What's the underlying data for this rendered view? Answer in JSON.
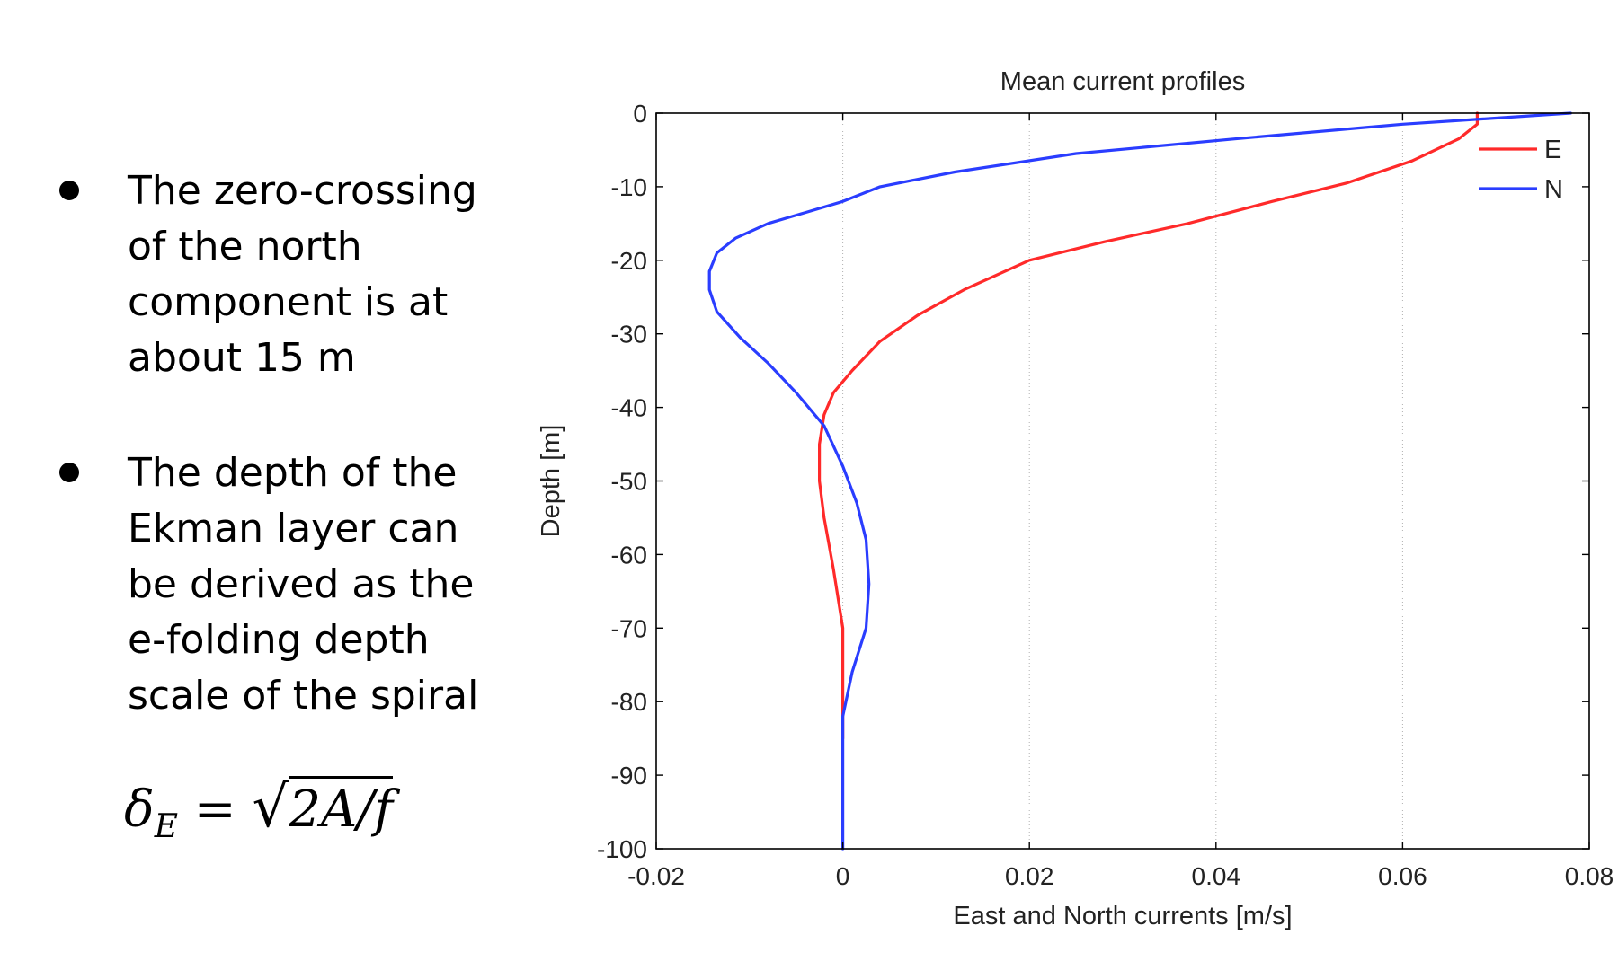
{
  "bullets": [
    {
      "text": "The zero-crossing\nof the north\ncomponent is at\nabout 15 m"
    },
    {
      "text": "The depth of the\nEkman layer can\nbe derived as the\ne-folding depth\nscale of the spiral"
    }
  ],
  "formula": "δE = √(2A/f)",
  "chart_data": {
    "type": "line",
    "title": "Mean current profiles",
    "xlabel": "East and North currents [m/s]",
    "ylabel": "Depth [m]",
    "xlim": [
      -0.02,
      0.08
    ],
    "ylim": [
      -100,
      0
    ],
    "x_ticks": [
      "-0.02",
      "0",
      "0.02",
      "0.04",
      "0.06",
      "0.08"
    ],
    "y_ticks": [
      "0",
      "-10",
      "-20",
      "-30",
      "-40",
      "-50",
      "-60",
      "-70",
      "-80",
      "-90",
      "-100"
    ],
    "grid": "vertical dotted",
    "legend_position": "top-right",
    "series": [
      {
        "name": "E",
        "color": "#ff2a2a",
        "points": [
          [
            0.068,
            0
          ],
          [
            0.068,
            -1.5
          ],
          [
            0.066,
            -3.5
          ],
          [
            0.061,
            -6.5
          ],
          [
            0.054,
            -9.5
          ],
          [
            0.046,
            -12
          ],
          [
            0.037,
            -15
          ],
          [
            0.028,
            -17.5
          ],
          [
            0.02,
            -20
          ],
          [
            0.013,
            -24
          ],
          [
            0.008,
            -27.5
          ],
          [
            0.004,
            -31
          ],
          [
            0.001,
            -35
          ],
          [
            -0.001,
            -38
          ],
          [
            -0.002,
            -41
          ],
          [
            -0.0025,
            -45
          ],
          [
            -0.0025,
            -50
          ],
          [
            -0.002,
            -55
          ],
          [
            -0.001,
            -62
          ],
          [
            0.0,
            -70
          ],
          [
            0.0,
            -78
          ],
          [
            0.0,
            -85
          ]
        ]
      },
      {
        "name": "N",
        "color": "#2a3dff",
        "points": [
          [
            0.078,
            0
          ],
          [
            0.06,
            -1.5
          ],
          [
            0.042,
            -3.5
          ],
          [
            0.025,
            -5.5
          ],
          [
            0.012,
            -8
          ],
          [
            0.004,
            -10
          ],
          [
            0.0,
            -12
          ],
          [
            -0.004,
            -13.5
          ],
          [
            -0.008,
            -15
          ],
          [
            -0.0115,
            -17
          ],
          [
            -0.0135,
            -19
          ],
          [
            -0.0143,
            -21.5
          ],
          [
            -0.0143,
            -24
          ],
          [
            -0.0135,
            -27
          ],
          [
            -0.011,
            -30.5
          ],
          [
            -0.008,
            -34
          ],
          [
            -0.005,
            -38
          ],
          [
            -0.002,
            -42.5
          ],
          [
            0.0,
            -48
          ],
          [
            0.0015,
            -53
          ],
          [
            0.0025,
            -58
          ],
          [
            0.0028,
            -64
          ],
          [
            0.0025,
            -70
          ],
          [
            0.001,
            -76
          ],
          [
            0.0,
            -82
          ],
          [
            0.0,
            -90
          ],
          [
            0.0,
            -100
          ]
        ]
      }
    ]
  }
}
